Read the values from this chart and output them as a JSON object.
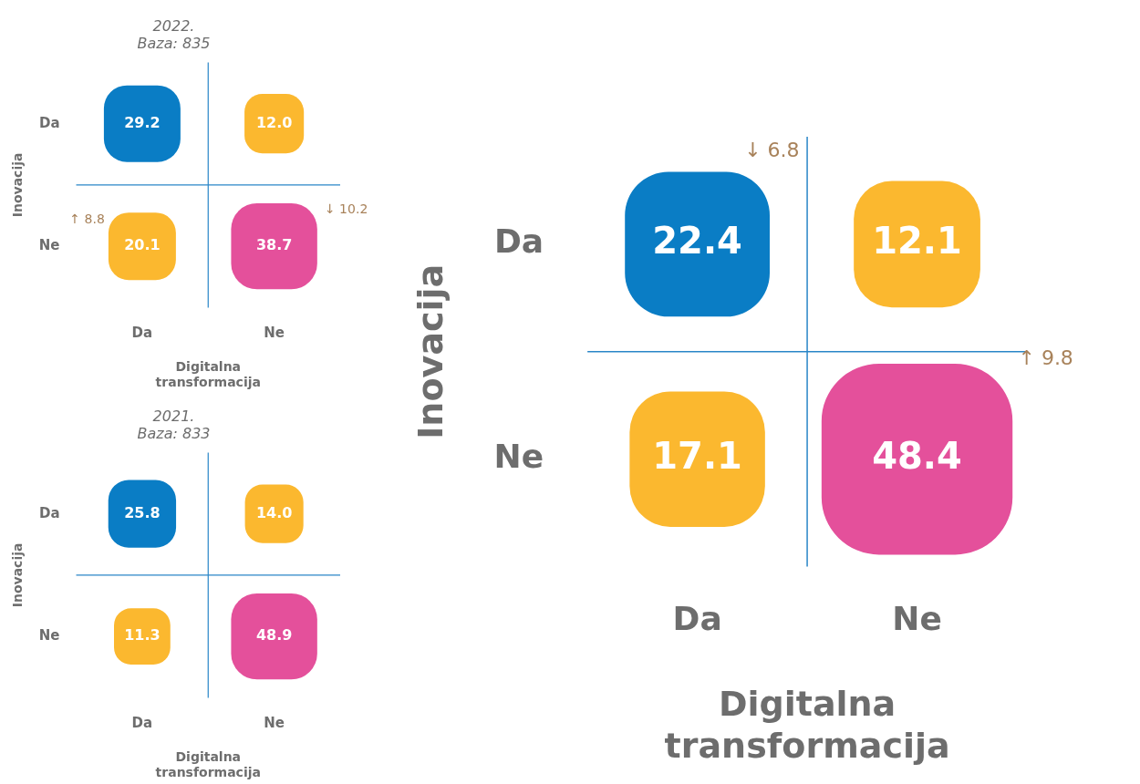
{
  "chart_data": [
    {
      "type": "heatmap",
      "title": "2022.",
      "subtitle": "Baza: 835",
      "xlabel": "Digitalna transformacija",
      "ylabel": "Inovacija",
      "categories": [
        "Da",
        "Ne"
      ],
      "y_categories": [
        "Da",
        "Ne"
      ],
      "cells": [
        [
          29.2,
          12.0
        ],
        [
          20.1,
          38.7
        ]
      ],
      "cell_labels": [
        [
          "29.2",
          "12.0"
        ],
        [
          "20.1",
          "38.7"
        ]
      ],
      "colors": [
        "#0a7dc5",
        "#fbb82f",
        "#fbb82f",
        "#e4509b"
      ],
      "annotations": [
        "↑ 8.8",
        "↓ 10.2"
      ]
    },
    {
      "type": "heatmap",
      "title": "2021.",
      "subtitle": "Baza: 833",
      "xlabel": "Digitalna transformacija",
      "ylabel": "Inovacija",
      "categories": [
        "Da",
        "Ne"
      ],
      "y_categories": [
        "Da",
        "Ne"
      ],
      "cells": [
        [
          25.8,
          14.0
        ],
        [
          11.3,
          48.9
        ]
      ],
      "cell_labels": [
        [
          "25.8",
          "14.0"
        ],
        [
          "11.3",
          "48.9"
        ]
      ],
      "colors": [
        "#0a7dc5",
        "#fbb82f",
        "#fbb82f",
        "#e4509b"
      ]
    },
    {
      "type": "heatmap",
      "xlabel": "Digitalna transformacija",
      "ylabel": "Inovacija",
      "categories": [
        "Da",
        "Ne"
      ],
      "y_categories": [
        "Da",
        "Ne"
      ],
      "cells": [
        [
          22.4,
          12.1
        ],
        [
          17.1,
          48.4
        ]
      ],
      "cell_labels": [
        [
          "22.4",
          "12.1"
        ],
        [
          "17.1",
          "48.4"
        ]
      ],
      "colors": [
        "#0a7dc5",
        "#fbb82f",
        "#fbb82f",
        "#e4509b"
      ],
      "annotations": [
        "↓ 6.8",
        "↑ 9.8"
      ]
    }
  ]
}
